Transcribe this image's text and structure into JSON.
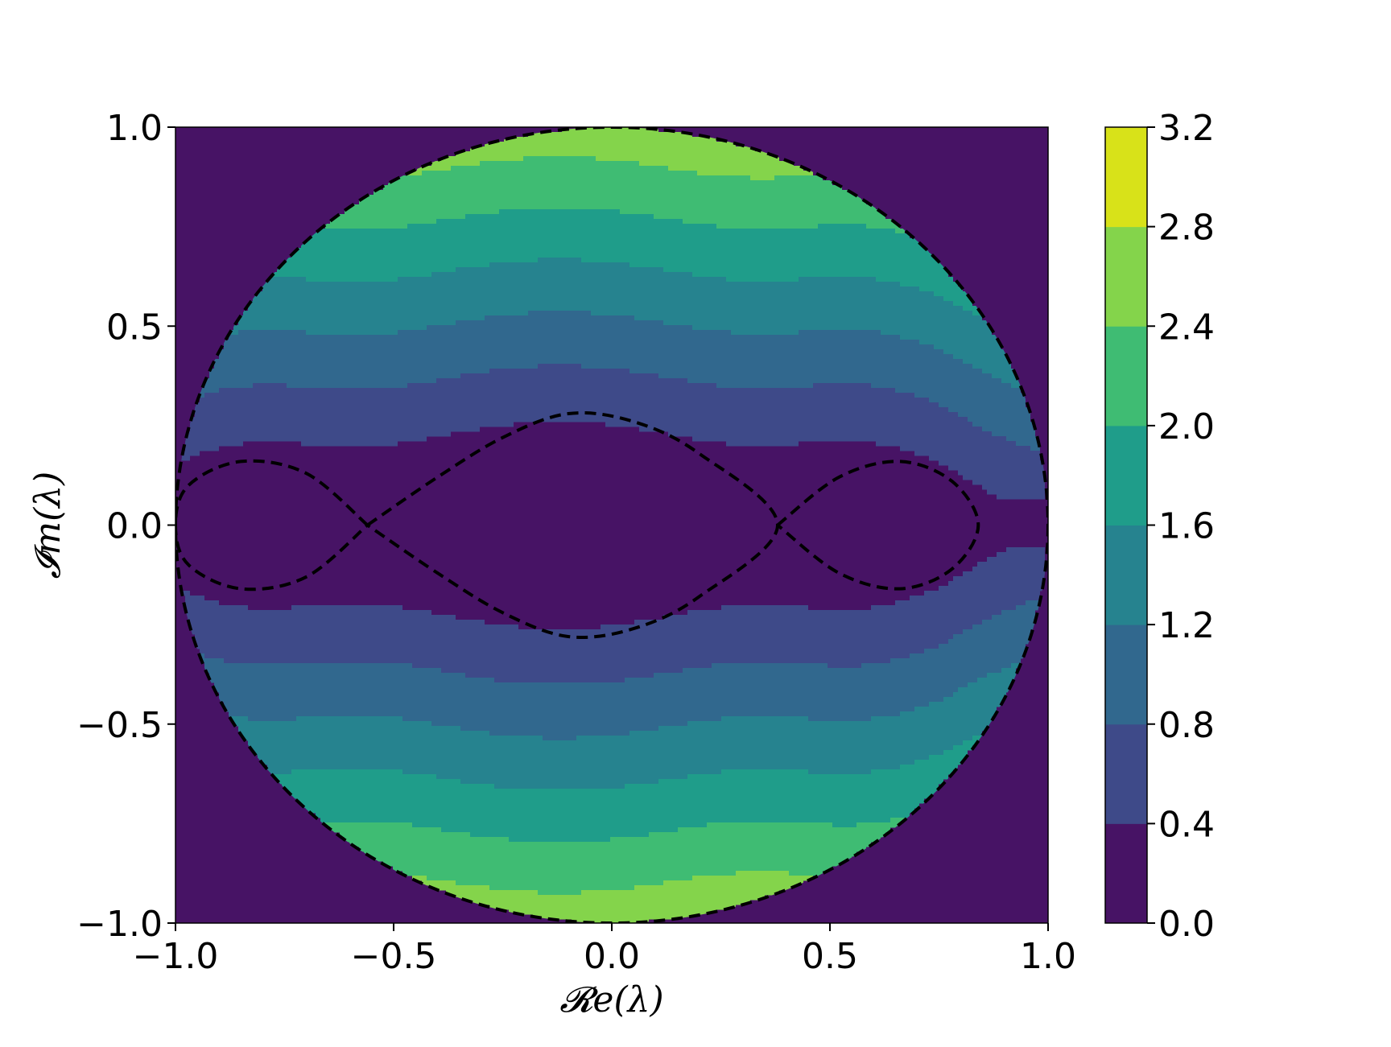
{
  "chart_data": {
    "type": "heatmap",
    "subtype": "filled-contour",
    "title": "",
    "xlabel": "𝓡e(λ)",
    "ylabel": "𝓘m(λ)",
    "xlim": [
      -1.0,
      1.0
    ],
    "ylim": [
      -1.0,
      1.0
    ],
    "xticks": [
      "−1.0",
      "−0.5",
      "0.0",
      "0.5",
      "1.0"
    ],
    "yticks": [
      "−1.0",
      "−0.5",
      "0.0",
      "0.5",
      "1.0"
    ],
    "x_tick_values": [
      -1.0,
      -0.5,
      0.0,
      0.5,
      1.0
    ],
    "y_tick_values": [
      -1.0,
      -0.5,
      0.0,
      0.5,
      1.0
    ],
    "grid": false,
    "colormap": "viridis",
    "outside_value": 0.0,
    "levels": [
      0.0,
      0.4,
      0.8,
      1.2,
      1.6,
      2.0,
      2.4,
      2.8,
      3.2
    ],
    "colorbar_ticks": [
      "0.0",
      "0.4",
      "0.8",
      "1.2",
      "1.6",
      "2.0",
      "2.4",
      "2.8",
      "3.2"
    ],
    "level_colors": [
      "#471365",
      "#3e4a89",
      "#31688e",
      "#26838f",
      "#1f9d8a",
      "#3fbc73",
      "#84d44b",
      "#d8e219"
    ],
    "unit_circle_boundary": true,
    "dashed_contours": [
      {
        "name": "unit-circle",
        "shape": "circle",
        "center": [
          0,
          0
        ],
        "radius": 1.0
      },
      {
        "name": "lens",
        "shape": "curve",
        "points": [
          [
            -0.56,
            0.0
          ],
          [
            -0.4,
            0.12
          ],
          [
            -0.25,
            0.22
          ],
          [
            -0.1,
            0.28
          ],
          [
            0.05,
            0.26
          ],
          [
            0.2,
            0.18
          ],
          [
            0.38,
            0.0
          ],
          [
            0.2,
            -0.18
          ],
          [
            0.05,
            -0.26
          ],
          [
            -0.1,
            -0.28
          ],
          [
            -0.25,
            -0.22
          ],
          [
            -0.4,
            -0.12
          ],
          [
            -0.56,
            0.0
          ]
        ]
      },
      {
        "name": "left-loop",
        "shape": "curve",
        "points": [
          [
            -0.56,
            0.0
          ],
          [
            -0.7,
            0.13
          ],
          [
            -0.85,
            0.16
          ],
          [
            -0.97,
            0.1
          ],
          [
            -1.0,
            0.0
          ],
          [
            -0.97,
            -0.1
          ],
          [
            -0.85,
            -0.16
          ],
          [
            -0.7,
            -0.13
          ],
          [
            -0.56,
            0.0
          ]
        ]
      },
      {
        "name": "right-loop",
        "shape": "curve",
        "points": [
          [
            0.38,
            0.0
          ],
          [
            0.52,
            0.12
          ],
          [
            0.66,
            0.16
          ],
          [
            0.78,
            0.11
          ],
          [
            0.84,
            0.0
          ],
          [
            0.78,
            -0.11
          ],
          [
            0.66,
            -0.16
          ],
          [
            0.52,
            -0.12
          ],
          [
            0.38,
            0.0
          ]
        ]
      }
    ]
  }
}
